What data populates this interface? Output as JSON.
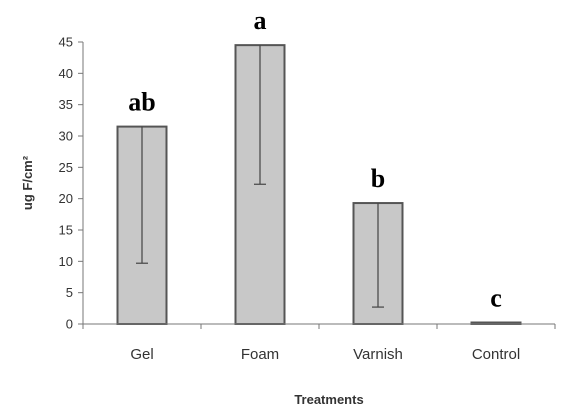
{
  "chart_data": {
    "type": "bar",
    "categories": [
      "Gel",
      "Foam",
      "Varnish",
      "Control"
    ],
    "values": [
      31.5,
      44.5,
      19.3,
      0.2
    ],
    "error_low": [
      9.7,
      22.3,
      2.7,
      0.2
    ],
    "significance_letters": [
      "ab",
      "a",
      "b",
      "c"
    ],
    "title": "",
    "xlabel": "Treatments",
    "ylabel": "ug F/cm²",
    "ylim": [
      0,
      45
    ],
    "yticks": [
      0,
      5,
      10,
      15,
      20,
      25,
      30,
      35,
      40,
      45
    ],
    "grid": false,
    "bar_color": "#c8c8c8",
    "bar_stroke": "#555555"
  }
}
